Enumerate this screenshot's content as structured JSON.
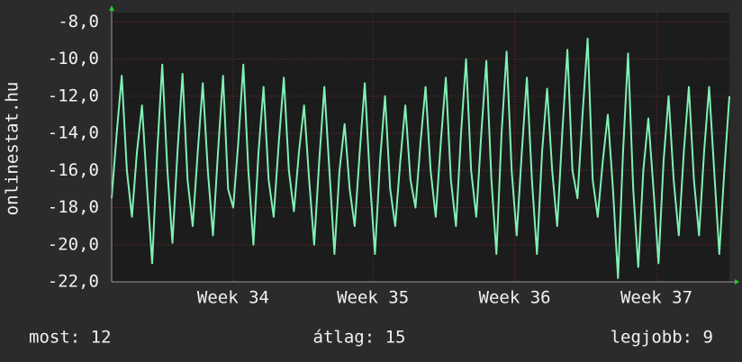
{
  "chart_data": {
    "type": "line",
    "y_label": "onlinestat.hu",
    "xlim": [
      0,
      30.5
    ],
    "xticks": [
      {
        "value": 6.0,
        "label": "Week 34"
      },
      {
        "value": 12.9,
        "label": "Week 35"
      },
      {
        "value": 19.9,
        "label": "Week 36"
      },
      {
        "value": 26.9,
        "label": "Week 37"
      }
    ],
    "ylim": [
      -22,
      -7.5
    ],
    "yticks": [
      {
        "value": -22,
        "label": "-22,0"
      },
      {
        "value": -20,
        "label": "-20,0"
      },
      {
        "value": -18,
        "label": "-18,0"
      },
      {
        "value": -16,
        "label": "-16,0"
      },
      {
        "value": -14,
        "label": "-14,0"
      },
      {
        "value": -12,
        "label": "-12,0"
      },
      {
        "value": -10,
        "label": "-10,0"
      },
      {
        "value": -8,
        "label": "-8,0"
      }
    ],
    "grid": true,
    "color": "#7ff0b4",
    "values": [
      -17.5,
      -14,
      -10.9,
      -16,
      -18.5,
      -15,
      -12.5,
      -17,
      -21,
      -15,
      -10.3,
      -16,
      -19.9,
      -15,
      -10.8,
      -16.5,
      -19,
      -15,
      -11.3,
      -16,
      -19.5,
      -15,
      -10.9,
      -17,
      -18,
      -14.5,
      -10.3,
      -16,
      -20,
      -15,
      -11.5,
      -16.5,
      -18.5,
      -14.5,
      -11,
      -16,
      -18.2,
      -15,
      -12.5,
      -16.5,
      -20,
      -15.5,
      -11.5,
      -16,
      -20.5,
      -16,
      -13.5,
      -17,
      -19,
      -15,
      -11.3,
      -16.5,
      -20.5,
      -15.5,
      -12,
      -17,
      -19,
      -15.5,
      -12.5,
      -16.5,
      -18,
      -14.5,
      -11.5,
      -16,
      -18.5,
      -14.5,
      -11,
      -16.5,
      -19,
      -14,
      -10,
      -16,
      -18.5,
      -14,
      -10.1,
      -16.5,
      -20.5,
      -14,
      -9.6,
      -16,
      -19.5,
      -15,
      -11,
      -16.5,
      -20.5,
      -15,
      -11.6,
      -16,
      -19,
      -14,
      -9.5,
      -16,
      -17.5,
      -13,
      -8.9,
      -16.5,
      -18.5,
      -15.5,
      -13,
      -17,
      -21.8,
      -15,
      -9.7,
      -17,
      -21.2,
      -16,
      -13.2,
      -17,
      -21,
      -15.5,
      -12,
      -16.5,
      -19.5,
      -15,
      -11.5,
      -16.5,
      -19.5,
      -15,
      -11.5,
      -16,
      -20.5,
      -16,
      -12
    ],
    "footer": [
      "most: 12",
      "átlag: 15",
      "legjobb: 9"
    ]
  }
}
